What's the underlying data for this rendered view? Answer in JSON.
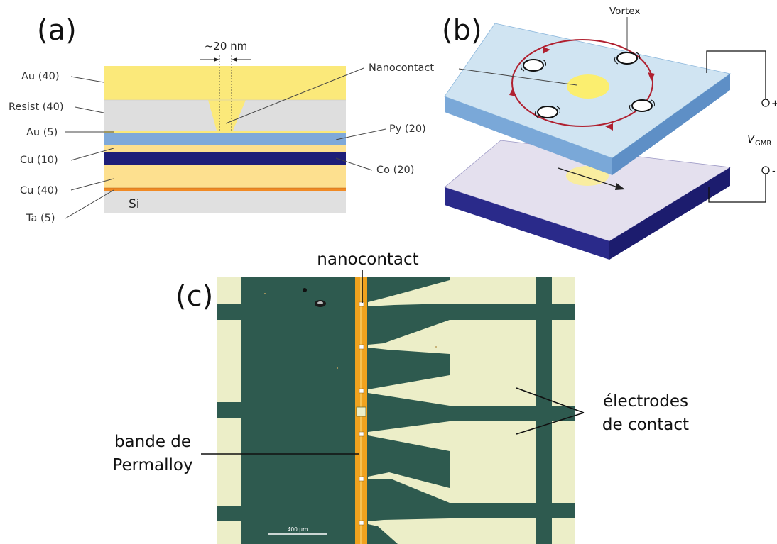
{
  "panels": {
    "a": {
      "label": "(a)",
      "width_annotation": "~20 nm",
      "substrate": "Si",
      "layers_left": [
        "Au (40)",
        "Resist (40)",
        "Au (5)",
        "Cu (10)",
        "Cu (40)",
        "Ta (5)"
      ],
      "layers_right": [
        "Nanocontact",
        "Py (20)",
        "Co (20)"
      ]
    },
    "b": {
      "label": "(b)",
      "vortex_label": "Vortex",
      "voltage_symbol": "V",
      "voltage_subscript": "GMR",
      "terminal_plus": "+",
      "terminal_minus": "-"
    },
    "c": {
      "label": "(c)",
      "nanocontact_label": "nanocontact",
      "strip_label_line1": "bande de",
      "strip_label_line2": "Permalloy",
      "electrodes_label_line1": "électrodes",
      "electrodes_label_line2": "de contact",
      "scale_bar_label": "400 µm"
    }
  },
  "colors": {
    "gold": "#fbe97a",
    "resist": "#dedede",
    "permalloy": "#7fa9d9",
    "cobalt": "#1e1e78",
    "copper": "#fde08f",
    "tantalum": "#f08a24",
    "silicon": "#e0e0e0",
    "vortex_path": "#b02030",
    "micro_background": "#2e5a4f",
    "micro_pad": "#eceec8",
    "strip": "#f0a21e"
  }
}
